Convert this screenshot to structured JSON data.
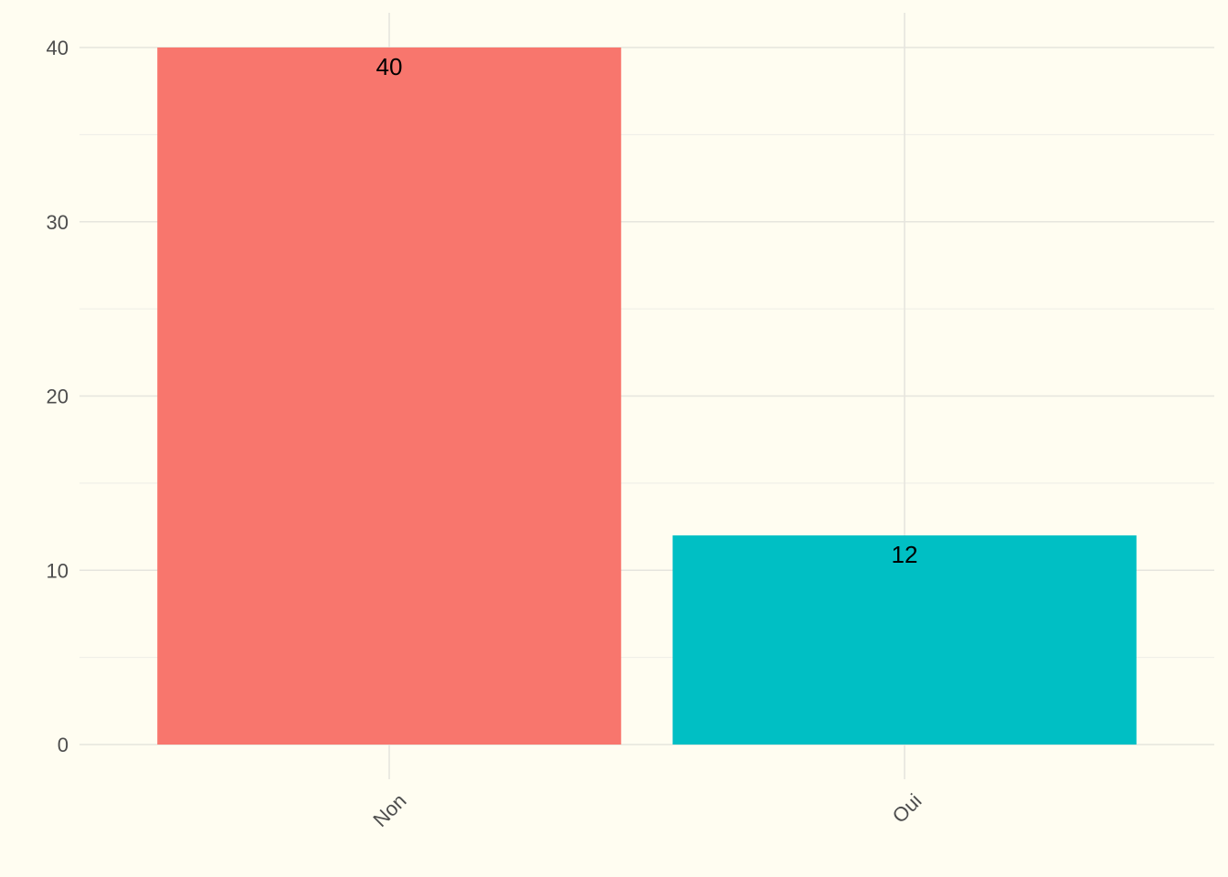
{
  "chart_data": {
    "type": "bar",
    "title": "",
    "xlabel": "",
    "ylabel": "",
    "categories": [
      "Non",
      "Oui"
    ],
    "values": [
      40,
      12
    ],
    "value_labels": [
      "40",
      "12"
    ],
    "colors": [
      "#F8766D",
      "#00BFC4"
    ],
    "ylim": [
      0,
      40
    ],
    "yticks": [
      0,
      10,
      20,
      30,
      40
    ],
    "ytick_labels": [
      "0",
      "10",
      "20",
      "30",
      "40"
    ],
    "grid": true,
    "legend": "none",
    "x_tick_rotation_deg": -45,
    "background_color": "#FFFDF1",
    "grid_color": "#E6E5DE"
  }
}
